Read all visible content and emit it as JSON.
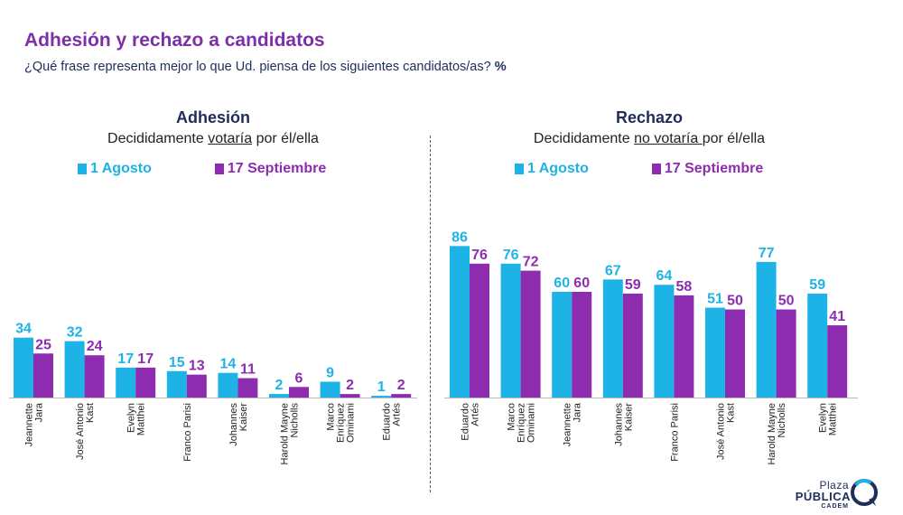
{
  "title": "Adhesión y rechazo a candidatos",
  "question": "¿Qué frase representa mejor lo que Ud. piensa de los siguientes candidatos/as?",
  "question_unit": "%",
  "colors": {
    "agosto": "#1eb3e6",
    "septiembre": "#8e2cb0",
    "title": "#7b2fa8",
    "text": "#1f2d5a"
  },
  "logo": {
    "line1": "Plaza",
    "line2": "PÚBLICA",
    "line3": "CADEM"
  },
  "panels": [
    {
      "heading": "Adhesión",
      "sub_before": "Decididamente ",
      "sub_underlined": "votaría",
      "sub_after": " por él/ella",
      "legend": [
        "1 Agosto",
        "17 Septiembre"
      ]
    },
    {
      "heading": "Rechazo",
      "sub_before": "Decididamente ",
      "sub_underlined": "no votaría ",
      "sub_after": "por él/ella",
      "legend": [
        "1 Agosto",
        "17 Septiembre"
      ]
    }
  ],
  "chart_data": [
    {
      "type": "bar",
      "title": "Adhesión",
      "categories": [
        [
          "Jeannette",
          "Jara"
        ],
        [
          "José Antonio",
          "Kast"
        ],
        [
          "Evelyn",
          "Matthei"
        ],
        [
          "Franco Parisi"
        ],
        [
          "Johannes",
          "Kaiser"
        ],
        [
          "Harold Mayne",
          "Nicholls"
        ],
        [
          "Marco",
          "Enríquez",
          "Ominami"
        ],
        [
          "Eduardo",
          "Artés"
        ]
      ],
      "series": [
        {
          "name": "1 Agosto",
          "values": [
            34,
            32,
            17,
            15,
            14,
            2,
            9,
            1
          ]
        },
        {
          "name": "17 Septiembre",
          "values": [
            25,
            24,
            17,
            13,
            11,
            6,
            2,
            2
          ]
        }
      ]
    },
    {
      "type": "bar",
      "title": "Rechazo",
      "categories": [
        [
          "Eduardo",
          "Artés"
        ],
        [
          "Marco",
          "Enríquez",
          "Ominami"
        ],
        [
          "Jeannette",
          "Jara"
        ],
        [
          "Johannes",
          "Kaiser"
        ],
        [
          "Franco Parisi"
        ],
        [
          "José Antonio",
          "Kast"
        ],
        [
          "Harold Mayne",
          "Nicholls"
        ],
        [
          "Evelyn",
          "Matthei"
        ]
      ],
      "series": [
        {
          "name": "1 Agosto",
          "values": [
            86,
            76,
            60,
            67,
            64,
            51,
            77,
            59
          ]
        },
        {
          "name": "17 Septiembre",
          "values": [
            76,
            72,
            60,
            59,
            58,
            50,
            50,
            41
          ]
        }
      ]
    }
  ]
}
